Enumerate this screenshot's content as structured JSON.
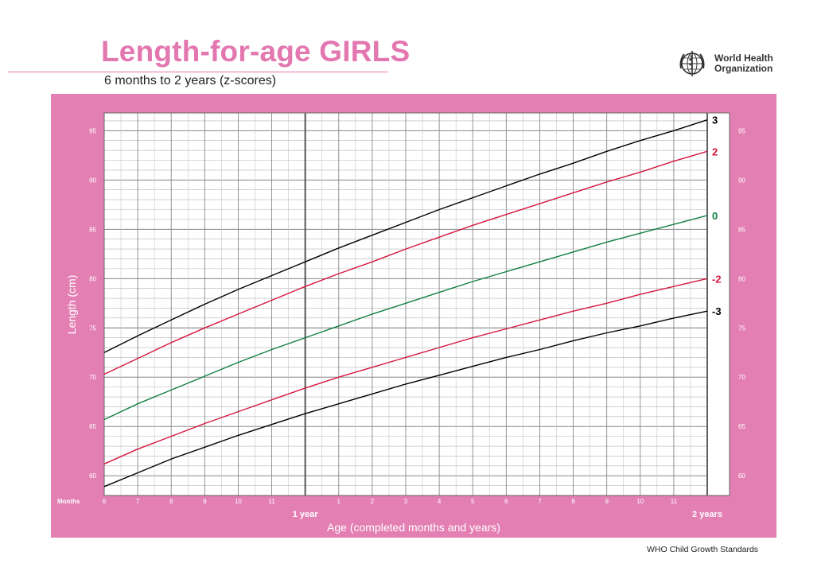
{
  "header": {
    "title": "Length-for-age GIRLS",
    "subtitle": "6 months to 2 years (z-scores)"
  },
  "logo": {
    "name_line1": "World Health",
    "name_line2": "Organization",
    "icon": "who-emblem-icon"
  },
  "footer": {
    "text": "WHO Child Growth Standards"
  },
  "colors": {
    "panel": "#e37fb3",
    "title": "#e377b0",
    "z3": "#000000",
    "z2": "#d6173c",
    "z0": "#108040",
    "neg2": "#d6173c",
    "neg3": "#000000"
  },
  "chart_data": {
    "type": "line",
    "title": "Length-for-age GIRLS",
    "subtitle": "6 months to 2 years (z-scores)",
    "xlabel": "Age (completed months and years)",
    "ylabel": "Length (cm)",
    "months_label": "Months",
    "year_labels": [
      {
        "x": 12,
        "label": "1 year"
      },
      {
        "x": 24,
        "label": "2 years"
      }
    ],
    "x_range": [
      6,
      24
    ],
    "ylim": [
      58,
      96.8
    ],
    "grid": true,
    "x_ticks": [
      {
        "x": 6,
        "label": "6"
      },
      {
        "x": 7,
        "label": "7"
      },
      {
        "x": 8,
        "label": "8"
      },
      {
        "x": 9,
        "label": "9"
      },
      {
        "x": 10,
        "label": "10"
      },
      {
        "x": 11,
        "label": "11"
      },
      {
        "x": 13,
        "label": "1"
      },
      {
        "x": 14,
        "label": "2"
      },
      {
        "x": 15,
        "label": "3"
      },
      {
        "x": 16,
        "label": "4"
      },
      {
        "x": 17,
        "label": "5"
      },
      {
        "x": 18,
        "label": "6"
      },
      {
        "x": 19,
        "label": "7"
      },
      {
        "x": 20,
        "label": "8"
      },
      {
        "x": 21,
        "label": "9"
      },
      {
        "x": 22,
        "label": "10"
      },
      {
        "x": 23,
        "label": "11"
      }
    ],
    "y_ticks": [
      {
        "y": 60,
        "label": "60"
      },
      {
        "y": 65,
        "label": "65"
      },
      {
        "y": 70,
        "label": "70"
      },
      {
        "y": 75,
        "label": "75"
      },
      {
        "y": 80,
        "label": "80"
      },
      {
        "y": 85,
        "label": "85"
      },
      {
        "y": 90,
        "label": "90"
      },
      {
        "y": 95,
        "label": "95"
      }
    ],
    "x": [
      6,
      7,
      8,
      9,
      10,
      11,
      12,
      13,
      14,
      15,
      16,
      17,
      18,
      19,
      20,
      21,
      22,
      23,
      24
    ],
    "series": [
      {
        "name": "3",
        "color": "#000000",
        "values": [
          72.5,
          74.2,
          75.8,
          77.4,
          78.9,
          80.3,
          81.7,
          83.1,
          84.4,
          85.7,
          87.0,
          88.2,
          89.4,
          90.6,
          91.7,
          92.9,
          94.0,
          95.0,
          96.1
        ]
      },
      {
        "name": "2",
        "color": "#d6173c",
        "values": [
          70.3,
          71.9,
          73.5,
          75.0,
          76.4,
          77.8,
          79.2,
          80.5,
          81.7,
          83.0,
          84.2,
          85.4,
          86.5,
          87.6,
          88.7,
          89.8,
          90.8,
          91.9,
          92.9
        ]
      },
      {
        "name": "0",
        "color": "#108040",
        "values": [
          65.7,
          67.3,
          68.7,
          70.1,
          71.5,
          72.8,
          74.0,
          75.2,
          76.4,
          77.5,
          78.6,
          79.7,
          80.7,
          81.7,
          82.7,
          83.7,
          84.6,
          85.5,
          86.4
        ]
      },
      {
        "name": "-2",
        "color": "#d6173c",
        "values": [
          61.2,
          62.7,
          64.0,
          65.3,
          66.5,
          67.7,
          68.9,
          70.0,
          71.0,
          72.0,
          73.0,
          74.0,
          74.9,
          75.8,
          76.7,
          77.5,
          78.4,
          79.2,
          80.0
        ]
      },
      {
        "name": "-3",
        "color": "#000000",
        "values": [
          58.9,
          60.3,
          61.7,
          62.9,
          64.1,
          65.2,
          66.3,
          67.3,
          68.3,
          69.3,
          70.2,
          71.1,
          72.0,
          72.8,
          73.7,
          74.5,
          75.2,
          76.0,
          76.7
        ]
      }
    ]
  }
}
